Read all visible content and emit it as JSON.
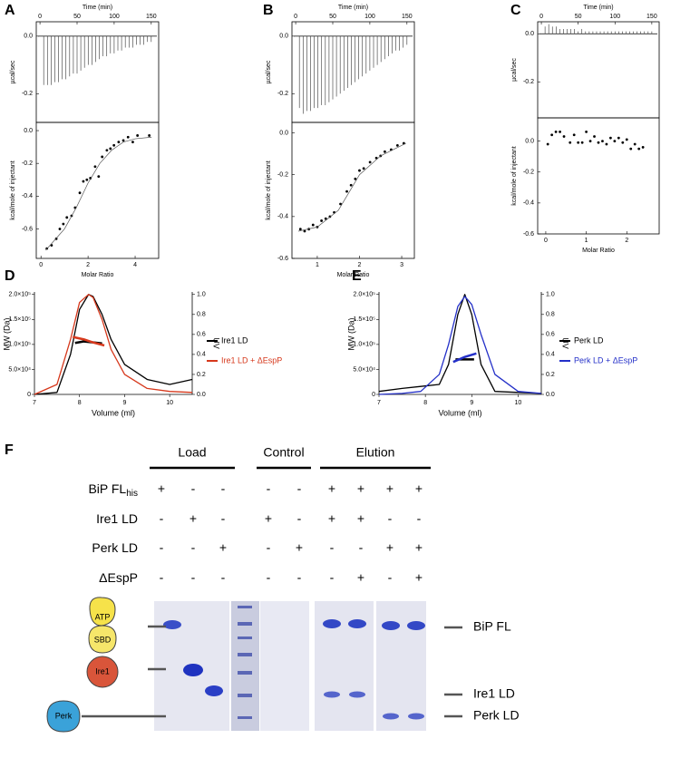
{
  "chart_data": [
    {
      "type": "itc",
      "panel": "A",
      "top": {
        "x_label": "Time (min)",
        "y_label": "µcal/sec",
        "xlim": [
          -5,
          160
        ],
        "xticks": [
          0,
          50,
          100,
          150
        ],
        "ylim": [
          -0.3,
          0.05
        ],
        "yticks": [
          {
            "value": 0,
            "label": "0.0"
          },
          -0.2
        ],
        "x": [
          5,
          10,
          15,
          20,
          25,
          30,
          35,
          40,
          45,
          50,
          55,
          60,
          65,
          70,
          75,
          80,
          85,
          90,
          95,
          100,
          105,
          110,
          115,
          120,
          125,
          130,
          135,
          140,
          145,
          150
        ],
        "values": [
          -0.17,
          -0.17,
          -0.17,
          -0.16,
          -0.16,
          -0.15,
          -0.15,
          -0.14,
          -0.13,
          -0.13,
          -0.12,
          -0.11,
          -0.1,
          -0.1,
          -0.09,
          -0.08,
          -0.07,
          -0.07,
          -0.06,
          -0.06,
          -0.05,
          -0.05,
          -0.04,
          -0.04,
          -0.04,
          -0.03,
          -0.03,
          -0.03,
          -0.02,
          -0.02
        ]
      },
      "bottom": {
        "x_label": "Molar Ratio",
        "y_label": "kcal/mole of injectant",
        "xlim": [
          -0.2,
          5
        ],
        "xticks": [
          0,
          2,
          4
        ],
        "ylim": [
          -0.78,
          0.05
        ],
        "yticks": [
          {
            "value": 0,
            "label": "0.0"
          },
          -0.2,
          -0.4,
          -0.6
        ],
        "x": [
          0.25,
          0.45,
          0.65,
          0.8,
          0.95,
          1.1,
          1.3,
          1.45,
          1.65,
          1.8,
          1.95,
          2.1,
          2.3,
          2.45,
          2.6,
          2.8,
          2.95,
          3.1,
          3.3,
          3.5,
          3.7,
          3.9,
          4.1,
          4.6
        ],
        "values": [
          -0.72,
          -0.7,
          -0.66,
          -0.6,
          -0.57,
          -0.53,
          -0.52,
          -0.47,
          -0.38,
          -0.31,
          -0.3,
          -0.29,
          -0.22,
          -0.28,
          -0.16,
          -0.12,
          -0.11,
          -0.09,
          -0.07,
          -0.06,
          -0.04,
          -0.07,
          -0.03,
          -0.03
        ],
        "fit_x": [
          0.2,
          1,
          1.5,
          2,
          2.5,
          3,
          3.5,
          4,
          4.7
        ],
        "fit": [
          -0.73,
          -0.6,
          -0.47,
          -0.32,
          -0.2,
          -0.12,
          -0.07,
          -0.05,
          -0.04
        ]
      }
    },
    {
      "type": "itc",
      "panel": "B",
      "top": {
        "x_label": "Time (min)",
        "y_label": "µcal/sec",
        "xlim": [
          -5,
          160
        ],
        "xticks": [
          0,
          50,
          100,
          150
        ],
        "ylim": [
          -0.3,
          0.05
        ],
        "yticks": [
          {
            "value": 0,
            "label": "0.0"
          },
          -0.2
        ],
        "x": [
          5,
          10,
          15,
          20,
          25,
          30,
          35,
          40,
          45,
          50,
          55,
          60,
          65,
          70,
          75,
          80,
          85,
          90,
          95,
          100,
          105,
          110,
          115,
          120,
          125,
          130,
          135,
          140,
          145,
          150
        ],
        "values": [
          -0.25,
          -0.27,
          -0.26,
          -0.26,
          -0.25,
          -0.25,
          -0.24,
          -0.24,
          -0.23,
          -0.22,
          -0.21,
          -0.2,
          -0.19,
          -0.18,
          -0.17,
          -0.16,
          -0.15,
          -0.14,
          -0.13,
          -0.12,
          -0.11,
          -0.1,
          -0.09,
          -0.08,
          -0.07,
          -0.06,
          -0.05,
          -0.05,
          -0.04,
          -0.03
        ]
      },
      "bottom": {
        "x_label": "Molar Ratio",
        "y_label": "kcal/mole of injectant",
        "xlim": [
          0.4,
          3.3
        ],
        "xticks": [
          1,
          2,
          3
        ],
        "ylim": [
          -0.6,
          0.05
        ],
        "yticks": [
          {
            "value": 0,
            "label": "0.0"
          },
          -0.2,
          -0.4,
          -0.6
        ],
        "x": [
          0.6,
          0.7,
          0.8,
          0.9,
          1.0,
          1.1,
          1.2,
          1.3,
          1.4,
          1.55,
          1.7,
          1.8,
          1.9,
          2.0,
          2.1,
          2.25,
          2.4,
          2.5,
          2.6,
          2.75,
          2.9,
          3.05
        ],
        "values": [
          -0.46,
          -0.47,
          -0.46,
          -0.44,
          -0.45,
          -0.42,
          -0.41,
          -0.4,
          -0.38,
          -0.34,
          -0.28,
          -0.25,
          -0.22,
          -0.18,
          -0.17,
          -0.14,
          -0.12,
          -0.11,
          -0.09,
          -0.08,
          -0.06,
          -0.05
        ],
        "fit_x": [
          0.55,
          1,
          1.5,
          2,
          2.5,
          3.1
        ],
        "fit": [
          -0.47,
          -0.45,
          -0.37,
          -0.2,
          -0.11,
          -0.05
        ]
      }
    },
    {
      "type": "itc",
      "panel": "C",
      "top": {
        "x_label": "Time (min)",
        "y_label": "µcal/sec",
        "xlim": [
          -5,
          160
        ],
        "xticks": [
          0,
          50,
          100,
          150
        ],
        "ylim": [
          -0.35,
          0.05
        ],
        "yticks": [
          {
            "value": 0,
            "label": "0.0"
          },
          -0.2
        ],
        "x": [
          5,
          10,
          15,
          20,
          25,
          30,
          35,
          40,
          45,
          50,
          55,
          60,
          65,
          70,
          75,
          80,
          85,
          90,
          95,
          100,
          105,
          110,
          115,
          120,
          125,
          130,
          135,
          140,
          145,
          150
        ],
        "values": [
          0.03,
          0.04,
          0.03,
          0.03,
          0.02,
          0.02,
          0.02,
          0.02,
          0.02,
          0.01,
          0.02,
          0.01,
          0.01,
          0.01,
          0.01,
          0.01,
          0.01,
          0.01,
          0.01,
          0.01,
          0.01,
          0.01,
          0.01,
          0.01,
          0.01,
          0.01,
          0.01,
          0.01,
          0.01,
          0.01
        ]
      },
      "bottom": {
        "x_label": "Molar Ratio",
        "y_label": "kcal/mole of injectant",
        "xlim": [
          -0.2,
          2.8
        ],
        "xticks": [
          0,
          1,
          2
        ],
        "ylim": [
          -0.6,
          0.15
        ],
        "yticks": [
          {
            "value": 0,
            "label": "0.0"
          },
          -0.2,
          -0.4,
          -0.6
        ],
        "x": [
          0.05,
          0.15,
          0.25,
          0.35,
          0.45,
          0.6,
          0.7,
          0.8,
          0.9,
          1.0,
          1.1,
          1.2,
          1.3,
          1.4,
          1.5,
          1.6,
          1.7,
          1.8,
          1.9,
          2.0,
          2.1,
          2.2,
          2.3,
          2.4
        ],
        "values": [
          -0.02,
          0.04,
          0.06,
          0.06,
          0.03,
          -0.01,
          0.04,
          -0.01,
          -0.01,
          0.06,
          0.0,
          0.03,
          -0.01,
          0.0,
          -0.02,
          0.02,
          0.0,
          0.02,
          -0.01,
          0.01,
          -0.05,
          -0.02,
          -0.05,
          -0.04
        ],
        "fit_x": [],
        "fit": []
      }
    },
    {
      "type": "sec",
      "panel": "D",
      "x_label": "Volume (ml)",
      "y_label": "MW (Da)",
      "y2_label": "UV",
      "xlim": [
        7,
        10.5
      ],
      "xticks": [
        7,
        8,
        9,
        10
      ],
      "ylim": [
        0,
        205000
      ],
      "yticks": [
        0,
        {
          "value": 50000,
          "label": "5.0×10⁴"
        },
        {
          "value": 100000,
          "label": "1.0×10⁵"
        },
        {
          "value": 150000,
          "label": "1.5×10⁵"
        },
        {
          "value": 200000,
          "label": "2.0×10⁵"
        }
      ],
      "y2lim": [
        0,
        1.025
      ],
      "y2ticks": [
        {
          "value": 0,
          "label": "0.0"
        },
        0.2,
        0.4,
        0.6,
        0.8,
        {
          "value": 1,
          "label": "1.0"
        }
      ],
      "series": [
        {
          "name": "Ire1  LD",
          "color": "#000000",
          "axis": "y2",
          "x": [
            7,
            7.5,
            7.8,
            8.0,
            8.2,
            8.3,
            8.5,
            8.7,
            9,
            9.5,
            10,
            10.5
          ],
          "values": [
            0.0,
            0.02,
            0.4,
            0.85,
            1.0,
            0.98,
            0.8,
            0.55,
            0.3,
            0.15,
            0.1,
            0.15
          ],
          "mw_x": [
            7.9,
            8.1,
            8.3,
            8.5
          ],
          "mw": [
            103000,
            106000,
            104000,
            102000
          ]
        },
        {
          "name": "Ire1  LD + ΔEspP",
          "color": "#d6381c",
          "axis": "y2",
          "x": [
            7,
            7.5,
            7.8,
            8.0,
            8.2,
            8.3,
            8.5,
            8.7,
            9,
            9.5,
            10,
            10.5
          ],
          "values": [
            0.0,
            0.1,
            0.55,
            0.92,
            1.0,
            0.97,
            0.75,
            0.45,
            0.2,
            0.06,
            0.03,
            0.02
          ],
          "mw_x": [
            7.85,
            8.1,
            8.3,
            8.55
          ],
          "mw": [
            115000,
            110000,
            104000,
            98000
          ]
        }
      ]
    },
    {
      "type": "sec",
      "panel": "E",
      "x_label": "Volume (ml)",
      "y_label": "MW (Da)",
      "y2_label": "UV",
      "xlim": [
        7,
        10.5
      ],
      "xticks": [
        7,
        8,
        9,
        10
      ],
      "ylim": [
        0,
        205000
      ],
      "yticks": [
        0,
        {
          "value": 50000,
          "label": "5.0×10⁴"
        },
        {
          "value": 100000,
          "label": "1.0×10⁵"
        },
        {
          "value": 150000,
          "label": "1.5×10⁵"
        },
        {
          "value": 200000,
          "label": "2.0×10⁵"
        }
      ],
      "y2lim": [
        0,
        1.025
      ],
      "y2ticks": [
        {
          "value": 0,
          "label": "0.0"
        },
        0.2,
        0.4,
        0.6,
        0.8,
        {
          "value": 1,
          "label": "1.0"
        }
      ],
      "series": [
        {
          "name": "Perk  LD",
          "color": "#000000",
          "axis": "y2",
          "x": [
            7,
            7.5,
            7.9,
            8.3,
            8.5,
            8.7,
            8.85,
            9.0,
            9.2,
            9.5,
            10,
            10.5
          ],
          "values": [
            0.03,
            0.06,
            0.08,
            0.1,
            0.3,
            0.8,
            1.0,
            0.8,
            0.3,
            0.03,
            0.02,
            0.01
          ],
          "mw_x": [
            8.65,
            8.85,
            9.05
          ],
          "mw": [
            70000,
            70000,
            70000
          ]
        },
        {
          "name": "Perk  LD + ΔEspP",
          "color": "#2430c8",
          "axis": "y2",
          "x": [
            7,
            7.5,
            7.9,
            8.3,
            8.5,
            8.7,
            8.85,
            9.0,
            9.2,
            9.5,
            10,
            10.5
          ],
          "values": [
            0.0,
            0.01,
            0.03,
            0.2,
            0.5,
            0.88,
            0.98,
            0.9,
            0.6,
            0.2,
            0.03,
            0.01
          ],
          "mw_x": [
            8.6,
            8.85,
            9.1
          ],
          "mw": [
            65000,
            75000,
            82000
          ]
        }
      ]
    }
  ],
  "gel": {
    "panel": "F",
    "groups": [
      "Load",
      "Control",
      "Elution"
    ],
    "rows": [
      {
        "label": "BiP FL",
        "sub": "his",
        "cells": [
          "+",
          "-",
          "-",
          "-",
          "-",
          "+",
          "+",
          "+",
          "+"
        ]
      },
      {
        "label": "Ire1 LD",
        "cells": [
          "-",
          "+",
          "-",
          "+",
          "-",
          "+",
          "+",
          "-",
          "-"
        ]
      },
      {
        "label": "Perk LD",
        "cells": [
          "-",
          "-",
          "+",
          "-",
          "+",
          "-",
          "-",
          "+",
          "+"
        ]
      },
      {
        "label": "ΔEspP",
        "cells": [
          "-",
          "-",
          "-",
          "-",
          "-",
          "-",
          "+",
          "-",
          "+"
        ]
      }
    ],
    "right_labels": [
      "BiP FL",
      "Ire1 LD",
      "Perk LD"
    ],
    "icons": [
      "ATP",
      "SBD",
      "Ire1",
      "Perk"
    ]
  }
}
